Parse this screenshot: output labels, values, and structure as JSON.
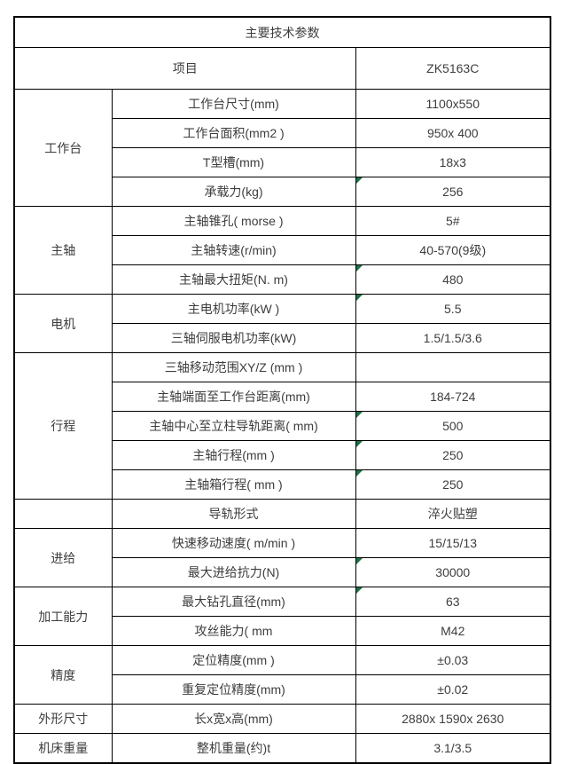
{
  "table": {
    "title": "主要技术参数",
    "header": {
      "item_label": "项目",
      "model": "ZK5163C"
    },
    "flag_color": "#1E7145",
    "sections": [
      {
        "group": "工作台",
        "rows": [
          {
            "label": "工作台尺寸(mm)",
            "value": "1100x550",
            "flag": false
          },
          {
            "label": "工作台面积(mm2 )",
            "value": "950x 400",
            "flag": false
          },
          {
            "label": "T型槽(mm)",
            "value": "18x3",
            "flag": false
          },
          {
            "label": "承载力(kg)",
            "value": "256",
            "flag": true
          }
        ]
      },
      {
        "group": "主轴",
        "rows": [
          {
            "label": "主轴锥孔( morse )",
            "value": "5#",
            "flag": false
          },
          {
            "label": "主轴转速(r/min)",
            "value": "40-570(9级)",
            "flag": false
          },
          {
            "label": "主轴最大扭矩(N. m)",
            "value": "480",
            "flag": true
          }
        ]
      },
      {
        "group": "电机",
        "rows": [
          {
            "label": "主电机功率(kW )",
            "value": "5.5",
            "flag": true
          },
          {
            "label": "三轴伺服电机功率(kW)",
            "value": "1.5/1.5/3.6",
            "flag": false
          }
        ]
      },
      {
        "group": "行程",
        "rows": [
          {
            "label": "三轴移动范围XY/Z (mm )",
            "value": "",
            "flag": false
          },
          {
            "label": "主轴端面至工作台距离(mm)",
            "value": "184-724",
            "flag": false
          },
          {
            "label": "主轴中心至立柱导轨距离( mm)",
            "value": "500",
            "flag": true
          },
          {
            "label": "主轴行程(mm )",
            "value": "250",
            "flag": true
          },
          {
            "label": "主轴箱行程( mm )",
            "value": "250",
            "flag": true
          }
        ]
      },
      {
        "group": "",
        "rows": [
          {
            "label": "导轨形式",
            "value": "淬火贴塑",
            "flag": false
          }
        ]
      },
      {
        "group": "进给",
        "rows": [
          {
            "label": "快速移动速度( m/min )",
            "value": "15/15/13",
            "flag": false
          },
          {
            "label": "最大进给抗力(N)",
            "value": "30000",
            "flag": true
          }
        ]
      },
      {
        "group": "加工能力",
        "rows": [
          {
            "label": "最大钻孔直径(mm)",
            "value": "63",
            "flag": true
          },
          {
            "label": "攻丝能力( mm",
            "value": "M42",
            "flag": false
          }
        ]
      },
      {
        "group": "精度",
        "rows": [
          {
            "label": "定位精度(mm )",
            "value": "±0.03",
            "flag": false
          },
          {
            "label": "重复定位精度(mm)",
            "value": "±0.02",
            "flag": false
          }
        ]
      },
      {
        "group": "外形尺寸",
        "rows": [
          {
            "label": "长x宽x高(mm)",
            "value": "2880x 1590x 2630",
            "flag": false
          }
        ]
      },
      {
        "group": "机床重量",
        "rows": [
          {
            "label": "整机重量(约)t",
            "value": "3.1/3.5",
            "flag": false
          }
        ]
      }
    ]
  }
}
